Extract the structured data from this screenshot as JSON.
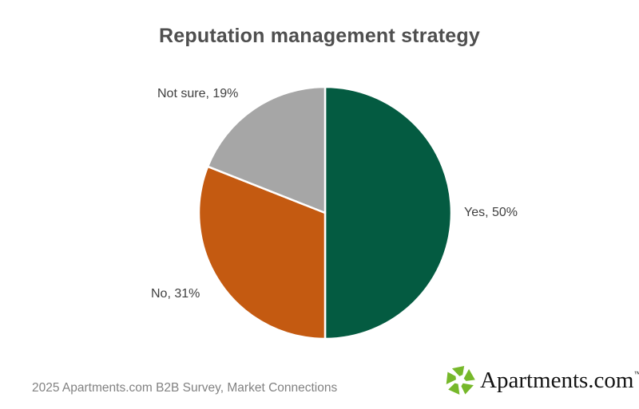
{
  "title": "Reputation management strategy",
  "chart_data": {
    "type": "pie",
    "title": "Reputation management strategy",
    "categories": [
      "Yes",
      "No",
      "Not sure"
    ],
    "values": [
      50,
      31,
      19
    ],
    "unit": "%",
    "colors": [
      "#045B41",
      "#C45A11",
      "#A6A6A6"
    ],
    "data_labels": [
      "Yes, 50%",
      "No, 31%",
      "Not sure, 19%"
    ],
    "start_angle_deg": 0,
    "direction": "clockwise",
    "labels_position": "outside",
    "legend": "none",
    "slice_separator_color": "#ffffff"
  },
  "footer": {
    "source_text": "2025 Apartments.com B2B Survey, Market Connections",
    "logo": {
      "icon": "apartments-pinwheel-icon",
      "icon_color": "#76B82A",
      "text": "Apartments.com",
      "trademark": "™",
      "text_color": "#141414"
    }
  },
  "styles": {
    "title_color": "#4F4F4F",
    "label_color": "#404040",
    "source_color": "#828282",
    "background": "#FFFFFF"
  }
}
